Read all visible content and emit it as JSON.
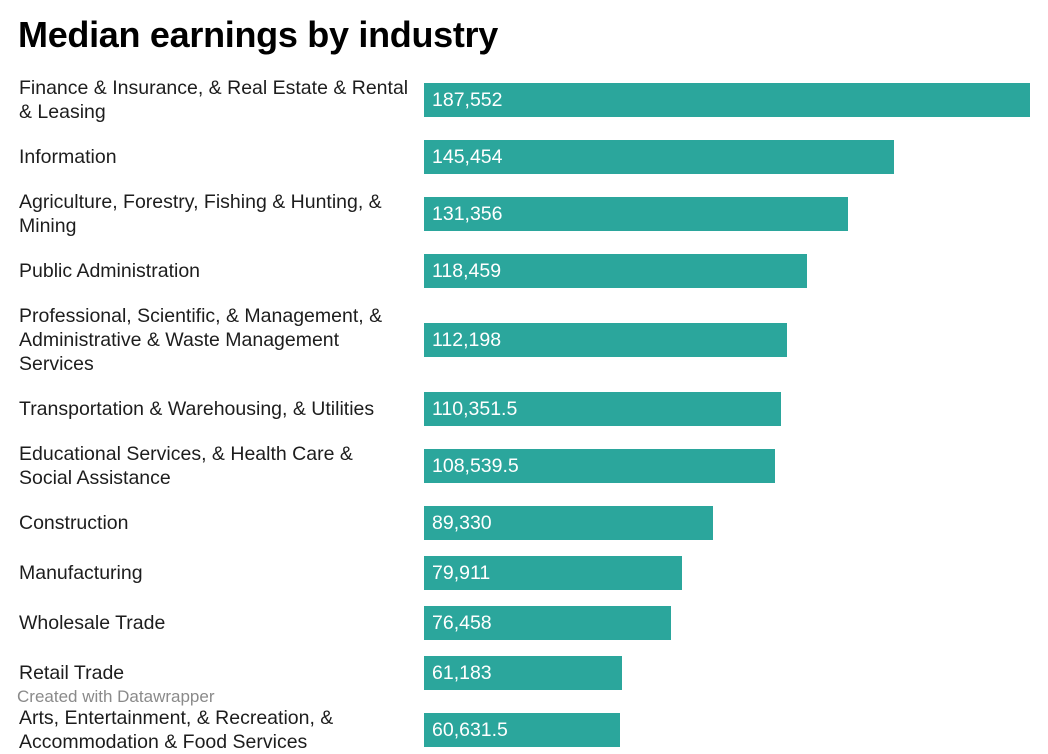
{
  "chart_data": {
    "type": "bar",
    "orientation": "horizontal",
    "title": "Median earnings by industry",
    "categories": [
      "Finance & Insurance, & Real Estate & Rental\n& Leasing",
      "Information",
      "Agriculture, Forestry, Fishing & Hunting, &\nMining",
      "Public Administration",
      "Professional, Scientific, & Management, &\nAdministrative & Waste Management\nServices",
      "Transportation & Warehousing, & Utilities",
      "Educational Services, & Health Care &\nSocial Assistance",
      "Construction",
      "Manufacturing",
      "Wholesale Trade",
      "Retail Trade",
      "Arts, Entertainment, & Recreation, &\nAccommodation & Food Services"
    ],
    "values": [
      187552,
      145454,
      131356,
      118459,
      112198,
      110351.5,
      108539.5,
      89330,
      79911,
      76458,
      61183,
      60631.5
    ],
    "value_labels": [
      "187,552",
      "145,454",
      "131,356",
      "118,459",
      "112,198",
      "110,351.5",
      "108,539.5",
      "89,330",
      "79,911",
      "76,458",
      "61,183",
      "60,631.5"
    ],
    "xlim": [
      0,
      187552
    ],
    "grid": false,
    "bar_color": "#2ba69c",
    "value_label_color": "#ffffff"
  },
  "footer": "Created with Datawrapper"
}
